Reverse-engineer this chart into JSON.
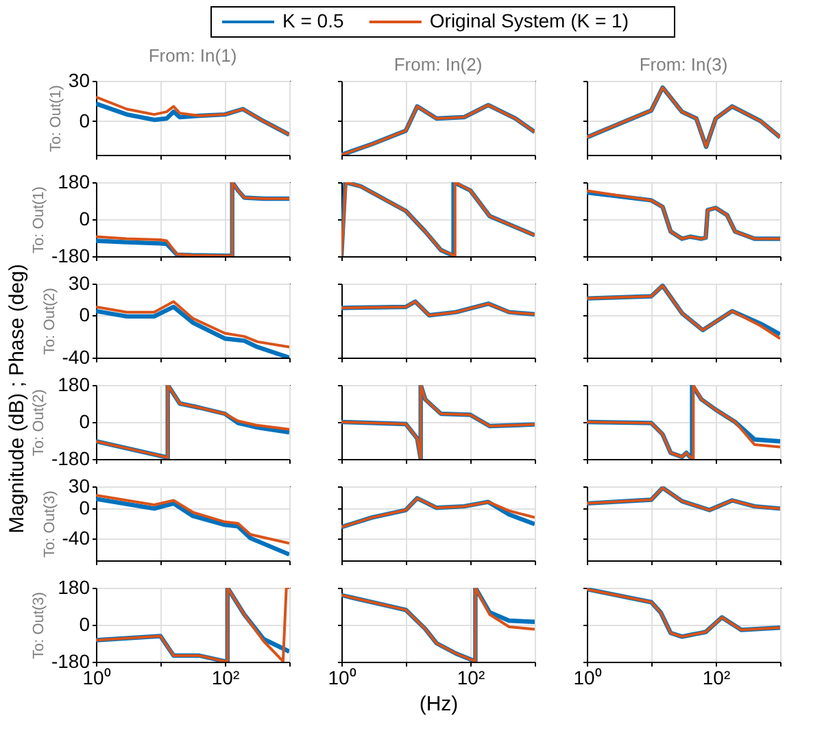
{
  "chart_data": [
    {
      "type": "line",
      "title": "From: In(1)",
      "ylabel": "To: Out(1)",
      "legend": "top",
      "annotations": [
        "Magnitude (dB) ; Phase (deg)"
      ],
      "log": "x",
      "grid": true,
      "tick_labels": "y",
      "xlim": [
        1,
        1000
      ],
      "xticks": [
        1,
        10,
        100,
        1000
      ],
      "ylim": [
        -25,
        30
      ],
      "yticks": [
        0,
        30
      ],
      "series": [
        {
          "name": "K = 0.5",
          "color": "#0072bd",
          "x": [
            1,
            3,
            8,
            12.5,
            16,
            20,
            40,
            100,
            190,
            400,
            1000
          ],
          "values": [
            13,
            5,
            1,
            2,
            7,
            3,
            4,
            5,
            9,
            0,
            -10
          ]
        },
        {
          "name": "Original System (K = 1)",
          "color": "#d95319",
          "x": [
            1,
            3,
            8,
            12.5,
            16,
            20,
            40,
            100,
            190,
            400,
            1000
          ],
          "values": [
            18,
            9,
            5,
            7,
            11,
            6,
            4,
            5,
            9,
            0,
            -10
          ]
        }
      ]
    },
    {
      "type": "line",
      "title": "From: In(2)",
      "log": "x",
      "grid": true,
      "tick_labels": false,
      "xlim": [
        1,
        1000
      ],
      "xticks": [
        1,
        10,
        100,
        1000
      ],
      "ylim": [
        -25,
        30
      ],
      "yticks": [
        0,
        30
      ],
      "series": [
        {
          "color": "#0072bd",
          "x": [
            1,
            3,
            10,
            15,
            30,
            80,
            190,
            500,
            1000
          ],
          "values": [
            -25,
            -17,
            -7,
            11,
            2,
            3,
            12,
            2,
            -8
          ]
        },
        {
          "color": "#d95319",
          "x": [
            1,
            3,
            10,
            15,
            30,
            80,
            190,
            500,
            1000
          ],
          "values": [
            -25,
            -17,
            -7,
            11,
            2,
            3,
            12,
            2,
            -8
          ]
        }
      ]
    },
    {
      "type": "line",
      "title": "From: In(3)",
      "log": "x",
      "grid": true,
      "tick_labels": false,
      "xlim": [
        1,
        1000
      ],
      "xticks": [
        1,
        10,
        100,
        1000
      ],
      "ylim": [
        -25,
        30
      ],
      "yticks": [
        0,
        30
      ],
      "series": [
        {
          "color": "#0072bd",
          "x": [
            1,
            10,
            15,
            30,
            50,
            71,
            100,
            180,
            500,
            1000
          ],
          "values": [
            -12,
            8,
            25,
            7,
            2,
            -19,
            2,
            11,
            0,
            -12
          ]
        },
        {
          "color": "#d95319",
          "x": [
            1,
            10,
            15,
            30,
            50,
            71,
            100,
            180,
            500,
            1000
          ],
          "values": [
            -12,
            8,
            25,
            7,
            2,
            -19,
            2,
            11,
            0,
            -12
          ]
        }
      ]
    },
    {
      "type": "line",
      "ylabel": "To: Out(1)",
      "log": "x",
      "grid": true,
      "tick_labels": "y",
      "xlim": [
        1,
        1000
      ],
      "xticks": [
        1,
        10,
        100,
        1000
      ],
      "ylim": [
        -180,
        180
      ],
      "yticks": [
        -180,
        0,
        180
      ],
      "series": [
        {
          "color": "#0072bd",
          "x": [
            1,
            3,
            10,
            12.5,
            18,
            30,
            130,
            130,
            160,
            200,
            400,
            1000
          ],
          "values": [
            -105,
            -112,
            -118,
            -120,
            -172,
            -175,
            -178,
            180,
            140,
            105,
            100,
            100
          ]
        },
        {
          "color": "#d95319",
          "x": [
            1,
            3,
            10,
            12.5,
            18,
            30,
            130,
            130,
            160,
            200,
            400,
            1000
          ],
          "values": [
            -85,
            -95,
            -100,
            -105,
            -170,
            -175,
            -178,
            180,
            140,
            105,
            100,
            100
          ]
        }
      ]
    },
    {
      "type": "line",
      "log": "x",
      "grid": true,
      "tick_labels": false,
      "xlim": [
        1,
        1000
      ],
      "xticks": [
        1,
        10,
        100,
        1000
      ],
      "ylim": [
        -180,
        180
      ],
      "yticks": [
        -180,
        0,
        180
      ],
      "series": [
        {
          "color": "#0072bd",
          "x": [
            1,
            1.15,
            2,
            10,
            20,
            35,
            55,
            55,
            100,
            200,
            1000
          ],
          "values": [
            -180,
            180,
            160,
            40,
            -60,
            -150,
            -178,
            180,
            140,
            15,
            -78
          ]
        },
        {
          "color": "#d95319",
          "x": [
            1,
            1.18,
            2,
            10,
            20,
            35,
            58,
            58,
            100,
            200,
            1000
          ],
          "values": [
            -180,
            180,
            160,
            40,
            -60,
            -150,
            -178,
            180,
            140,
            15,
            -78
          ]
        }
      ]
    },
    {
      "type": "line",
      "log": "x",
      "grid": true,
      "tick_labels": false,
      "xlim": [
        1,
        1000
      ],
      "xticks": [
        1,
        10,
        100,
        1000
      ],
      "ylim": [
        -180,
        180
      ],
      "yticks": [
        -180,
        0,
        180
      ],
      "series": [
        {
          "color": "#0072bd",
          "x": [
            1,
            10,
            15,
            20,
            30,
            40,
            60,
            70,
            75,
            100,
            150,
            200,
            400,
            1000
          ],
          "values": [
            130,
            92,
            60,
            -60,
            -95,
            -85,
            -95,
            -90,
            45,
            55,
            20,
            -60,
            -95,
            -95
          ]
        },
        {
          "color": "#d95319",
          "x": [
            1,
            10,
            15,
            20,
            30,
            40,
            60,
            70,
            75,
            100,
            150,
            200,
            400,
            1000
          ],
          "values": [
            138,
            92,
            60,
            -60,
            -95,
            -85,
            -95,
            -90,
            45,
            55,
            20,
            -60,
            -95,
            -95
          ]
        }
      ]
    },
    {
      "type": "line",
      "ylabel": "To: Out(2)",
      "log": "x",
      "grid": true,
      "tick_labels": "y",
      "xlim": [
        1,
        1000
      ],
      "xticks": [
        1,
        10,
        100,
        1000
      ],
      "ylim": [
        -40,
        30
      ],
      "yticks": [
        -40,
        0,
        30
      ],
      "series": [
        {
          "color": "#0072bd",
          "x": [
            1,
            3,
            8,
            16,
            32,
            100,
            200,
            320,
            1000
          ],
          "values": [
            4,
            -1,
            -1,
            8,
            -7,
            -22,
            -24,
            -30,
            -40
          ]
        },
        {
          "color": "#d95319",
          "x": [
            1,
            3,
            8,
            16,
            32,
            100,
            200,
            320,
            1000
          ],
          "values": [
            8,
            3,
            3,
            13,
            -3,
            -17,
            -20,
            -25,
            -30
          ]
        }
      ]
    },
    {
      "type": "line",
      "log": "x",
      "grid": true,
      "tick_labels": false,
      "xlim": [
        1,
        1000
      ],
      "xticks": [
        1,
        10,
        100,
        1000
      ],
      "ylim": [
        -40,
        30
      ],
      "yticks": [
        -40,
        0,
        30
      ],
      "series": [
        {
          "color": "#0072bd",
          "x": [
            1,
            10,
            14,
            23,
            60,
            190,
            400,
            1000
          ],
          "values": [
            7,
            8,
            13,
            0,
            3,
            11,
            3,
            1
          ]
        },
        {
          "color": "#d95319",
          "x": [
            1,
            10,
            14,
            23,
            60,
            190,
            400,
            1000
          ],
          "values": [
            7,
            8,
            13,
            0,
            3,
            11,
            3,
            1
          ]
        }
      ]
    },
    {
      "type": "line",
      "log": "x",
      "grid": true,
      "tick_labels": false,
      "xlim": [
        1,
        1000
      ],
      "xticks": [
        1,
        10,
        100,
        1000
      ],
      "ylim": [
        -40,
        30
      ],
      "yticks": [
        -40,
        0,
        30
      ],
      "series": [
        {
          "color": "#0072bd",
          "x": [
            1,
            10,
            15,
            30,
            63,
            180,
            500,
            1000
          ],
          "values": [
            16,
            18,
            28,
            2,
            -14,
            4,
            -8,
            -18
          ]
        },
        {
          "color": "#d95319",
          "x": [
            1,
            10,
            15,
            30,
            63,
            180,
            500,
            1000
          ],
          "values": [
            16,
            18,
            28,
            2,
            -14,
            4,
            -10,
            -22
          ]
        }
      ]
    },
    {
      "type": "line",
      "ylabel": "To: Out(2)",
      "log": "x",
      "grid": true,
      "tick_labels": "y",
      "xlim": [
        1,
        1000
      ],
      "xticks": [
        1,
        10,
        100,
        1000
      ],
      "ylim": [
        -180,
        180
      ],
      "yticks": [
        -180,
        0,
        180
      ],
      "series": [
        {
          "color": "#0072bd",
          "x": [
            1,
            13,
            13,
            20,
            40,
            100,
            160,
            300,
            1000
          ],
          "values": [
            -94,
            -173,
            180,
            90,
            70,
            40,
            -5,
            -25,
            -50
          ]
        },
        {
          "color": "#d95319",
          "x": [
            1,
            13,
            13,
            20,
            40,
            100,
            160,
            300,
            1000
          ],
          "values": [
            -94,
            -173,
            180,
            90,
            70,
            40,
            5,
            -15,
            -36
          ]
        }
      ]
    },
    {
      "type": "line",
      "log": "x",
      "grid": true,
      "tick_labels": false,
      "xlim": [
        1,
        1000
      ],
      "xticks": [
        1,
        10,
        100,
        1000
      ],
      "ylim": [
        -180,
        180
      ],
      "yticks": [
        -180,
        0,
        180
      ],
      "series": [
        {
          "color": "#0072bd",
          "x": [
            1,
            10,
            15,
            17,
            17,
            20,
            35,
            100,
            200,
            1000
          ],
          "values": [
            0,
            -10,
            -80,
            -180,
            180,
            110,
            40,
            35,
            -20,
            -12
          ]
        },
        {
          "color": "#d95319",
          "x": [
            1,
            10,
            15,
            17,
            17,
            20,
            35,
            100,
            200,
            1000
          ],
          "values": [
            0,
            -10,
            -80,
            -180,
            180,
            110,
            40,
            35,
            -20,
            -12
          ]
        }
      ]
    },
    {
      "type": "line",
      "log": "x",
      "grid": true,
      "tick_labels": false,
      "xlim": [
        1,
        1000
      ],
      "xticks": [
        1,
        10,
        100,
        1000
      ],
      "ylim": [
        -180,
        180
      ],
      "yticks": [
        -180,
        0,
        180
      ],
      "series": [
        {
          "color": "#0072bd",
          "x": [
            1,
            10,
            15,
            20,
            30,
            35,
            40,
            43,
            43,
            60,
            100,
            200,
            400,
            1000
          ],
          "values": [
            0,
            -5,
            -60,
            -150,
            -170,
            -150,
            -170,
            -175,
            180,
            110,
            60,
            0,
            -85,
            -94
          ]
        },
        {
          "color": "#d95319",
          "x": [
            1,
            10,
            15,
            20,
            30,
            35,
            40,
            45,
            45,
            60,
            100,
            200,
            400,
            1000
          ],
          "values": [
            0,
            -5,
            -60,
            -150,
            -170,
            -150,
            -170,
            -175,
            180,
            110,
            60,
            0,
            -110,
            -122
          ]
        }
      ]
    },
    {
      "type": "line",
      "ylabel": "To: Out(3)",
      "log": "x",
      "grid": true,
      "tick_labels": "y",
      "xlim": [
        1,
        1000
      ],
      "xticks": [
        1,
        10,
        100,
        1000
      ],
      "ylim": [
        -70,
        30
      ],
      "yticks": [
        -40,
        0,
        30
      ],
      "series": [
        {
          "color": "#0072bd",
          "x": [
            1,
            8,
            16,
            32,
            100,
            160,
            250,
            1000
          ],
          "values": [
            13,
            0,
            7,
            -10,
            -22,
            -24,
            -40,
            -62
          ]
        },
        {
          "color": "#d95319",
          "x": [
            1,
            8,
            16,
            32,
            100,
            160,
            250,
            1000
          ],
          "values": [
            18,
            5,
            11,
            -5,
            -18,
            -20,
            -35,
            -47
          ]
        }
      ]
    },
    {
      "type": "line",
      "log": "x",
      "grid": true,
      "tick_labels": false,
      "xlim": [
        1,
        1000
      ],
      "xticks": [
        1,
        10,
        100,
        1000
      ],
      "ylim": [
        -70,
        30
      ],
      "yticks": [
        -40,
        0,
        30
      ],
      "series": [
        {
          "color": "#0072bd",
          "x": [
            1,
            3,
            10,
            15,
            30,
            80,
            190,
            400,
            1000
          ],
          "values": [
            -25,
            -12,
            -2,
            14,
            1,
            3,
            9,
            -8,
            -21
          ]
        },
        {
          "color": "#d95319",
          "x": [
            1,
            3,
            10,
            15,
            30,
            80,
            190,
            400,
            1000
          ],
          "values": [
            -25,
            -12,
            -2,
            14,
            1,
            3,
            9,
            -3,
            -12
          ]
        }
      ]
    },
    {
      "type": "line",
      "log": "x",
      "grid": true,
      "tick_labels": false,
      "xlim": [
        1,
        1000
      ],
      "xticks": [
        1,
        10,
        100,
        1000
      ],
      "ylim": [
        -70,
        30
      ],
      "yticks": [
        -40,
        0,
        30
      ],
      "series": [
        {
          "color": "#0072bd",
          "x": [
            1,
            10,
            15,
            30,
            80,
            180,
            400,
            1000
          ],
          "values": [
            7,
            12,
            28,
            10,
            -2,
            11,
            3,
            0
          ]
        },
        {
          "color": "#d95319",
          "x": [
            1,
            10,
            15,
            30,
            80,
            180,
            400,
            1000
          ],
          "values": [
            7,
            12,
            28,
            10,
            -2,
            11,
            3,
            0
          ]
        }
      ]
    },
    {
      "type": "line",
      "ylabel": "To: Out(3)",
      "log": "x",
      "grid": true,
      "xlim": [
        1,
        1000
      ],
      "xticks": [
        {
          "value": 1,
          "label": "10⁰"
        },
        {
          "value": 10,
          "label": null
        },
        {
          "value": 100,
          "label": "10²"
        },
        {
          "value": 1000,
          "label": null
        }
      ],
      "ylim": [
        -180,
        180
      ],
      "yticks": [
        -180,
        0,
        180
      ],
      "series": [
        {
          "color": "#0072bd",
          "x": [
            1,
            10,
            16,
            40,
            100,
            110,
            110,
            200,
            400,
            1000
          ],
          "values": [
            -75,
            -55,
            -150,
            -150,
            -178,
            -178,
            180,
            50,
            -70,
            -130
          ]
        },
        {
          "color": "#d95319",
          "x": [
            1,
            10,
            16,
            40,
            100,
            110,
            110,
            200,
            400,
            800,
            900,
            1000
          ],
          "values": [
            -75,
            -55,
            -150,
            -150,
            -178,
            -178,
            180,
            50,
            -80,
            -178,
            180,
            180
          ]
        }
      ]
    },
    {
      "type": "line",
      "xlabel": "(Hz)",
      "log": "x",
      "grid": true,
      "tick_labels": "x",
      "xlim": [
        1,
        1000
      ],
      "xticks": [
        {
          "value": 1,
          "label": "10⁰"
        },
        {
          "value": 10,
          "label": null
        },
        {
          "value": 100,
          "label": "10²"
        },
        {
          "value": 1000,
          "label": null
        }
      ],
      "ylim": [
        -180,
        180
      ],
      "yticks": [
        -180,
        0,
        180
      ],
      "series": [
        {
          "color": "#0072bd",
          "x": [
            1,
            10,
            20,
            30,
            60,
            120,
            120,
            200,
            400,
            1000
          ],
          "values": [
            144,
            72,
            -20,
            -90,
            -140,
            -178,
            180,
            60,
            20,
            14
          ]
        },
        {
          "color": "#d95319",
          "x": [
            1,
            10,
            20,
            30,
            60,
            120,
            120,
            200,
            400,
            1000
          ],
          "values": [
            144,
            72,
            -20,
            -90,
            -140,
            -178,
            180,
            50,
            -10,
            -22
          ]
        }
      ]
    },
    {
      "type": "line",
      "log": "x",
      "grid": true,
      "tick_labels": "x",
      "xlim": [
        1,
        1000
      ],
      "xticks": [
        {
          "value": 1,
          "label": "10⁰"
        },
        {
          "value": 10,
          "label": null
        },
        {
          "value": 100,
          "label": "10²"
        },
        {
          "value": 1000,
          "label": null
        }
      ],
      "ylim": [
        -180,
        180
      ],
      "yticks": [
        -180,
        0,
        180
      ],
      "series": [
        {
          "color": "#0072bd",
          "x": [
            1,
            10,
            14,
            20,
            30,
            40,
            70,
            125,
            250,
            1000
          ],
          "values": [
            173,
            110,
            60,
            -40,
            -58,
            -50,
            -35,
            36,
            -25,
            -14
          ]
        },
        {
          "color": "#d95319",
          "x": [
            1,
            10,
            14,
            20,
            30,
            40,
            70,
            125,
            250,
            1000
          ],
          "values": [
            173,
            110,
            60,
            -40,
            -58,
            -50,
            -35,
            36,
            -25,
            -14
          ]
        }
      ]
    }
  ]
}
